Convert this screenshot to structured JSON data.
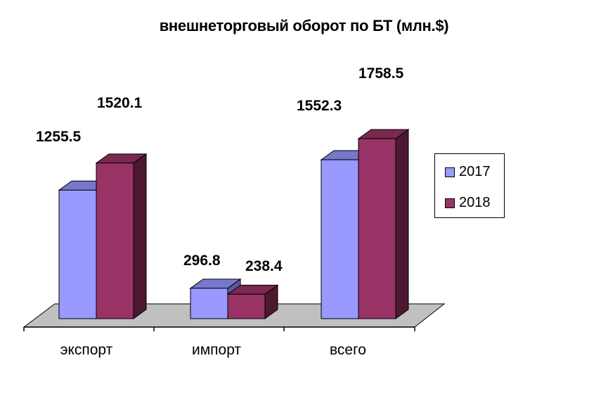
{
  "chart_data": {
    "type": "bar",
    "title": "внешнеторговый оборот по БТ (млн.$)",
    "categories": [
      "экспорт",
      "импорт",
      "всего"
    ],
    "series": [
      {
        "name": "2017",
        "values": [
          1255.5,
          296.8,
          1552.3
        ],
        "color": "#9999FF",
        "top_color": "#7777CC",
        "side_color": "#5A5AA0"
      },
      {
        "name": "2018",
        "values": [
          1520.1,
          238.4,
          1758.5
        ],
        "color": "#993366",
        "top_color": "#7A2850",
        "side_color": "#4D1930"
      }
    ],
    "value_labels": [
      [
        "1255.5",
        "296.8",
        "1552.3"
      ],
      [
        "1520.1",
        "238.4",
        "1758.5"
      ]
    ],
    "ylim": [
      0,
      2000
    ],
    "grid": false,
    "legend_position": "right",
    "floor_color": "#C0C0C0"
  }
}
